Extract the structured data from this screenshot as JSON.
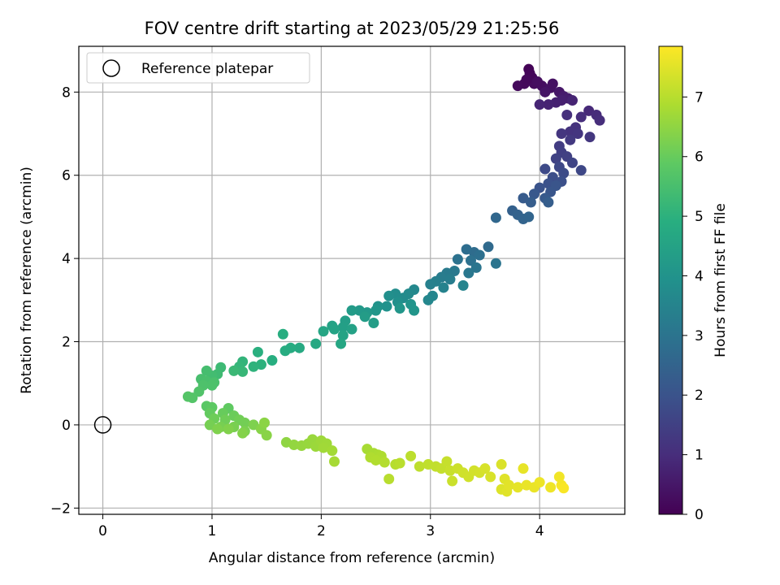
{
  "chart_data": {
    "type": "scatter",
    "title": "FOV centre drift starting at 2023/05/29 21:25:56",
    "xlabel": "Angular distance from reference (arcmin)",
    "ylabel": "Rotation from reference (arcmin)",
    "xlim": [
      -0.22,
      4.78
    ],
    "ylim": [
      -2.15,
      9.1
    ],
    "xticks": [
      0,
      1,
      2,
      3,
      4
    ],
    "yticks": [
      -2,
      0,
      2,
      4,
      6,
      8
    ],
    "grid": true,
    "legend": {
      "position": "top-left",
      "label": "Reference platepar",
      "marker": "open-circle"
    },
    "reference_point": {
      "x": 0,
      "y": 0
    },
    "colorbar": {
      "label": "Hours from first FF file",
      "colormap": "viridis",
      "range": [
        0,
        7.85
      ],
      "ticks": [
        0,
        1,
        2,
        3,
        4,
        5,
        6,
        7
      ]
    },
    "points": [
      [
        3.9,
        8.55,
        0.05
      ],
      [
        3.91,
        8.45,
        0.1
      ],
      [
        3.93,
        8.35,
        0.12
      ],
      [
        3.86,
        8.2,
        0.18
      ],
      [
        3.8,
        8.15,
        0.2
      ],
      [
        3.95,
        8.2,
        0.22
      ],
      [
        4.02,
        8.15,
        0.3
      ],
      [
        4.1,
        8.1,
        0.38
      ],
      [
        4.05,
        8.0,
        0.42
      ],
      [
        3.88,
        8.3,
        0.15
      ],
      [
        3.98,
        8.25,
        0.27
      ],
      [
        4.12,
        8.2,
        0.35
      ],
      [
        4.18,
        8.0,
        0.5
      ],
      [
        4.22,
        7.9,
        0.6
      ],
      [
        4.26,
        7.85,
        0.65
      ],
      [
        4.2,
        7.8,
        0.7
      ],
      [
        4.15,
        7.75,
        0.72
      ],
      [
        4.08,
        7.7,
        0.75
      ],
      [
        4.0,
        7.7,
        0.8
      ],
      [
        4.3,
        7.8,
        0.78
      ],
      [
        4.45,
        7.55,
        0.9
      ],
      [
        4.52,
        7.45,
        0.95
      ],
      [
        4.55,
        7.32,
        1.0
      ],
      [
        4.38,
        7.4,
        1.02
      ],
      [
        4.25,
        7.45,
        1.05
      ],
      [
        4.33,
        7.15,
        1.12
      ],
      [
        4.28,
        7.05,
        1.15
      ],
      [
        4.35,
        7.0,
        1.2
      ],
      [
        4.2,
        7.0,
        1.22
      ],
      [
        4.46,
        6.92,
        1.25
      ],
      [
        4.28,
        6.85,
        1.3
      ],
      [
        4.18,
        6.7,
        1.38
      ],
      [
        4.2,
        6.55,
        1.45
      ],
      [
        4.25,
        6.45,
        1.5
      ],
      [
        4.15,
        6.4,
        1.55
      ],
      [
        4.3,
        6.3,
        1.6
      ],
      [
        4.38,
        6.12,
        1.68
      ],
      [
        4.18,
        6.2,
        1.7
      ],
      [
        4.05,
        6.15,
        1.75
      ],
      [
        4.22,
        6.05,
        1.8
      ],
      [
        4.12,
        5.95,
        1.85
      ],
      [
        4.2,
        5.85,
        1.9
      ],
      [
        4.08,
        5.8,
        1.95
      ],
      [
        4.0,
        5.7,
        2.0
      ],
      [
        4.15,
        5.75,
        2.05
      ],
      [
        4.1,
        5.6,
        2.1
      ],
      [
        3.95,
        5.55,
        2.15
      ],
      [
        4.05,
        5.45,
        2.2
      ],
      [
        3.85,
        5.45,
        2.25
      ],
      [
        3.92,
        5.35,
        2.3
      ],
      [
        4.08,
        5.35,
        2.32
      ],
      [
        3.75,
        5.15,
        2.4
      ],
      [
        3.8,
        5.05,
        2.45
      ],
      [
        3.85,
        4.95,
        2.5
      ],
      [
        3.9,
        5.0,
        2.55
      ],
      [
        3.6,
        4.98,
        2.6
      ],
      [
        3.53,
        4.28,
        2.7
      ],
      [
        3.4,
        4.15,
        2.75
      ],
      [
        3.33,
        4.22,
        2.8
      ],
      [
        3.45,
        4.08,
        2.85
      ],
      [
        3.37,
        3.95,
        2.9
      ],
      [
        3.25,
        3.98,
        2.95
      ],
      [
        3.6,
        3.88,
        3.0
      ],
      [
        3.42,
        3.78,
        3.05
      ],
      [
        3.35,
        3.65,
        3.1
      ],
      [
        3.22,
        3.7,
        3.15
      ],
      [
        3.15,
        3.65,
        3.2
      ],
      [
        3.1,
        3.55,
        3.25
      ],
      [
        3.18,
        3.5,
        3.3
      ],
      [
        3.05,
        3.45,
        3.35
      ],
      [
        3.0,
        3.38,
        3.4
      ],
      [
        3.12,
        3.3,
        3.45
      ],
      [
        3.3,
        3.35,
        3.5
      ],
      [
        3.02,
        3.1,
        3.55
      ],
      [
        2.98,
        3.0,
        3.6
      ],
      [
        2.85,
        3.25,
        3.65
      ],
      [
        2.8,
        3.15,
        3.7
      ],
      [
        2.75,
        3.05,
        3.75
      ],
      [
        2.68,
        3.15,
        3.8
      ],
      [
        2.62,
        3.1,
        3.85
      ],
      [
        2.7,
        2.95,
        3.9
      ],
      [
        2.6,
        2.85,
        3.95
      ],
      [
        2.52,
        2.85,
        4.0
      ],
      [
        2.82,
        2.9,
        4.02
      ],
      [
        2.85,
        2.75,
        4.05
      ],
      [
        2.72,
        2.8,
        4.08
      ],
      [
        2.5,
        2.75,
        4.1
      ],
      [
        2.42,
        2.7,
        4.15
      ],
      [
        2.35,
        2.75,
        4.2
      ],
      [
        2.28,
        2.75,
        4.25
      ],
      [
        2.4,
        2.6,
        4.3
      ],
      [
        2.48,
        2.45,
        4.32
      ],
      [
        2.22,
        2.5,
        4.35
      ],
      [
        2.2,
        2.35,
        4.4
      ],
      [
        2.28,
        2.3,
        4.45
      ],
      [
        2.1,
        2.38,
        4.5
      ],
      [
        2.12,
        2.3,
        4.52
      ],
      [
        2.2,
        2.15,
        4.55
      ],
      [
        2.02,
        2.25,
        4.6
      ],
      [
        2.18,
        1.95,
        4.65
      ],
      [
        1.95,
        1.95,
        4.7
      ],
      [
        1.8,
        1.85,
        4.75
      ],
      [
        1.72,
        1.85,
        4.8
      ],
      [
        1.67,
        1.78,
        4.85
      ],
      [
        1.65,
        2.18,
        4.88
      ],
      [
        1.55,
        1.55,
        4.9
      ],
      [
        1.42,
        1.75,
        4.95
      ],
      [
        1.45,
        1.45,
        5.0
      ],
      [
        1.38,
        1.4,
        5.05
      ],
      [
        1.28,
        1.52,
        5.1
      ],
      [
        1.25,
        1.4,
        5.15
      ],
      [
        1.28,
        1.28,
        5.2
      ],
      [
        1.2,
        1.3,
        5.25
      ],
      [
        1.08,
        1.38,
        5.3
      ],
      [
        1.05,
        1.22,
        5.35
      ],
      [
        1.0,
        1.18,
        5.4
      ],
      [
        0.95,
        1.3,
        5.45
      ],
      [
        0.9,
        1.1,
        5.5
      ],
      [
        0.95,
        1.05,
        5.52
      ],
      [
        1.02,
        1.02,
        5.55
      ],
      [
        1.0,
        0.95,
        5.58
      ],
      [
        0.92,
        0.95,
        5.6
      ],
      [
        0.88,
        0.8,
        5.65
      ],
      [
        0.82,
        0.65,
        5.7
      ],
      [
        0.78,
        0.68,
        5.72
      ],
      [
        0.95,
        0.45,
        5.8
      ],
      [
        1.0,
        0.42,
        5.85
      ],
      [
        1.15,
        0.4,
        5.9
      ],
      [
        0.98,
        0.28,
        5.95
      ],
      [
        1.1,
        0.28,
        6.0
      ],
      [
        1.2,
        0.22,
        6.05
      ],
      [
        1.02,
        0.15,
        6.08
      ],
      [
        1.12,
        0.12,
        6.1
      ],
      [
        1.25,
        0.12,
        6.12
      ],
      [
        1.3,
        0.05,
        6.15
      ],
      [
        0.98,
        0.0,
        6.18
      ],
      [
        1.08,
        -0.05,
        6.2
      ],
      [
        1.2,
        -0.05,
        6.22
      ],
      [
        1.3,
        -0.15,
        6.25
      ],
      [
        1.38,
        0.0,
        6.28
      ],
      [
        1.05,
        -0.1,
        6.3
      ],
      [
        1.15,
        -0.1,
        6.32
      ],
      [
        1.28,
        -0.2,
        6.35
      ],
      [
        1.45,
        -0.1,
        6.4
      ],
      [
        1.5,
        -0.25,
        6.42
      ],
      [
        1.48,
        0.05,
        6.45
      ],
      [
        1.68,
        -0.42,
        6.5
      ],
      [
        1.75,
        -0.48,
        6.55
      ],
      [
        1.82,
        -0.5,
        6.58
      ],
      [
        1.88,
        -0.45,
        6.6
      ],
      [
        1.92,
        -0.35,
        6.62
      ],
      [
        1.95,
        -0.52,
        6.65
      ],
      [
        2.0,
        -0.38,
        6.68
      ],
      [
        2.05,
        -0.45,
        6.7
      ],
      [
        2.02,
        -0.55,
        6.72
      ],
      [
        2.1,
        -0.62,
        6.75
      ],
      [
        2.12,
        -0.88,
        6.78
      ],
      [
        2.42,
        -0.58,
        6.8
      ],
      [
        2.48,
        -0.68,
        6.82
      ],
      [
        2.52,
        -0.72,
        6.85
      ],
      [
        2.55,
        -0.75,
        6.88
      ],
      [
        2.45,
        -0.78,
        6.9
      ],
      [
        2.5,
        -0.85,
        6.92
      ],
      [
        2.58,
        -0.9,
        6.95
      ],
      [
        2.68,
        -0.95,
        6.98
      ],
      [
        2.62,
        -1.3,
        7.0
      ],
      [
        2.72,
        -0.92,
        7.02
      ],
      [
        2.82,
        -0.75,
        7.05
      ],
      [
        2.9,
        -1.0,
        7.08
      ],
      [
        2.98,
        -0.95,
        7.1
      ],
      [
        3.05,
        -1.0,
        7.12
      ],
      [
        3.1,
        -1.05,
        7.15
      ],
      [
        3.15,
        -0.88,
        7.18
      ],
      [
        3.18,
        -1.1,
        7.2
      ],
      [
        3.2,
        -1.35,
        7.22
      ],
      [
        3.25,
        -1.05,
        7.25
      ],
      [
        3.3,
        -1.15,
        7.28
      ],
      [
        3.35,
        -1.25,
        7.3
      ],
      [
        3.4,
        -1.1,
        7.32
      ],
      [
        3.45,
        -1.15,
        7.35
      ],
      [
        3.5,
        -1.05,
        7.38
      ],
      [
        3.55,
        -1.25,
        7.4
      ],
      [
        3.65,
        -0.95,
        7.42
      ],
      [
        3.65,
        -1.55,
        7.45
      ],
      [
        3.68,
        -1.3,
        7.48
      ],
      [
        3.7,
        -1.6,
        7.5
      ],
      [
        3.72,
        -1.45,
        7.52
      ],
      [
        3.8,
        -1.5,
        7.55
      ],
      [
        3.85,
        -1.05,
        7.58
      ],
      [
        3.88,
        -1.45,
        7.6
      ],
      [
        3.95,
        -1.5,
        7.62
      ],
      [
        4.0,
        -1.38,
        7.65
      ],
      [
        4.1,
        -1.5,
        7.68
      ],
      [
        4.18,
        -1.25,
        7.7
      ],
      [
        4.2,
        -1.45,
        7.75
      ],
      [
        4.22,
        -1.52,
        7.8
      ]
    ]
  }
}
